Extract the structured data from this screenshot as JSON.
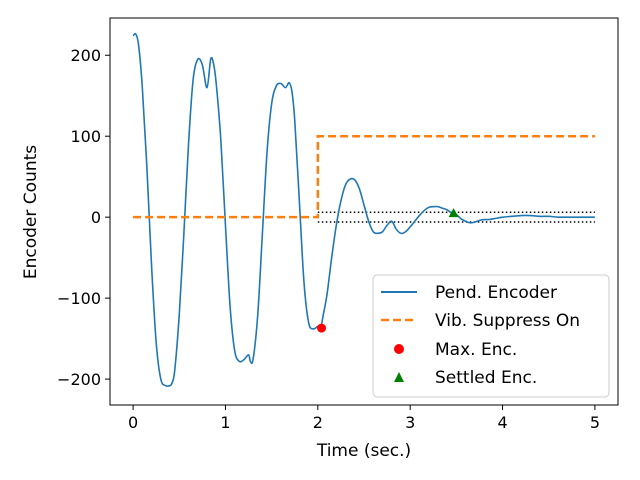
{
  "chart_data": {
    "type": "line",
    "xlabel": "Time (sec.)",
    "ylabel": "Encoder Counts",
    "xlim": [
      -0.25,
      5.25
    ],
    "ylim": [
      -232,
      246
    ],
    "xticks": [
      0,
      1,
      2,
      3,
      4,
      5
    ],
    "xtick_labels": [
      "0",
      "1",
      "2",
      "3",
      "4",
      "5"
    ],
    "yticks": [
      -200,
      -100,
      0,
      100,
      200
    ],
    "ytick_labels": [
      "−200",
      "−100",
      "0",
      "100",
      "200"
    ],
    "grid": false,
    "legend_position": "lower-right",
    "series": [
      {
        "name": "Pend. Encoder",
        "kind": "line",
        "color": "#1f77b4",
        "x": [
          0,
          0.03,
          0.06,
          0.1,
          0.15,
          0.2,
          0.25,
          0.3,
          0.35,
          0.4,
          0.42,
          0.45,
          0.5,
          0.55,
          0.6,
          0.65,
          0.7,
          0.75,
          0.8,
          0.84,
          0.87,
          0.9,
          0.95,
          1.0,
          1.05,
          1.1,
          1.15,
          1.2,
          1.25,
          1.27,
          1.3,
          1.35,
          1.4,
          1.45,
          1.5,
          1.55,
          1.6,
          1.65,
          1.69,
          1.72,
          1.75,
          1.8,
          1.85,
          1.9,
          1.95,
          2.0,
          2.03,
          2.06,
          2.1,
          2.15,
          2.2,
          2.25,
          2.3,
          2.35,
          2.4,
          2.45,
          2.5,
          2.55,
          2.6,
          2.65,
          2.7,
          2.75,
          2.8,
          2.85,
          2.9,
          2.95,
          3.0,
          3.05,
          3.1,
          3.15,
          3.2,
          3.25,
          3.3,
          3.35,
          3.4,
          3.45,
          3.5,
          3.55,
          3.6,
          3.65,
          3.7,
          3.75,
          3.8,
          3.85,
          3.9,
          3.95,
          4.0,
          4.1,
          4.2,
          4.3,
          4.4,
          4.5,
          4.6,
          4.7,
          4.8,
          4.9,
          5.0
        ],
        "y": [
          224,
          226,
          212,
          160,
          60,
          -60,
          -155,
          -200,
          -208,
          -208,
          -205,
          -190,
          -120,
          -20,
          90,
          170,
          195,
          188,
          160,
          195,
          190,
          165,
          95,
          -10,
          -110,
          -165,
          -178,
          -176,
          -170,
          -178,
          -175,
          -120,
          -20,
          80,
          140,
          162,
          165,
          160,
          166,
          155,
          120,
          20,
          -80,
          -130,
          -138,
          -135,
          -137,
          -120,
          -95,
          -50,
          -10,
          20,
          40,
          47,
          46,
          35,
          15,
          -5,
          -18,
          -20,
          -18,
          -10,
          -5,
          -15,
          -20,
          -18,
          -12,
          -5,
          2,
          8,
          12,
          13,
          13,
          11,
          9,
          5,
          3,
          -2,
          -5,
          -7,
          -6,
          -4,
          -3,
          -3,
          -2,
          -1,
          0,
          1,
          2,
          2,
          1,
          1,
          0,
          0,
          0,
          0,
          0
        ]
      },
      {
        "name": "Vib. Suppress On",
        "kind": "step",
        "color": "#ff7f0e",
        "x": [
          0,
          2.0,
          2.0,
          5.0
        ],
        "y": [
          0,
          0,
          100,
          100
        ]
      },
      {
        "name": "Max. Enc.",
        "kind": "marker",
        "marker": "circle",
        "color": "#ff0000",
        "x": [
          2.04
        ],
        "y": [
          -137
        ]
      },
      {
        "name": "Settled Enc.",
        "kind": "marker",
        "marker": "triangle",
        "color": "#008000",
        "x": [
          3.47
        ],
        "y": [
          5
        ]
      }
    ],
    "reference_lines": [
      {
        "kind": "dotted",
        "color": "#000000",
        "x": [
          2.0,
          5.0
        ],
        "y": 6
      },
      {
        "kind": "dotted",
        "color": "#000000",
        "x": [
          2.0,
          5.0
        ],
        "y": -6
      }
    ]
  }
}
